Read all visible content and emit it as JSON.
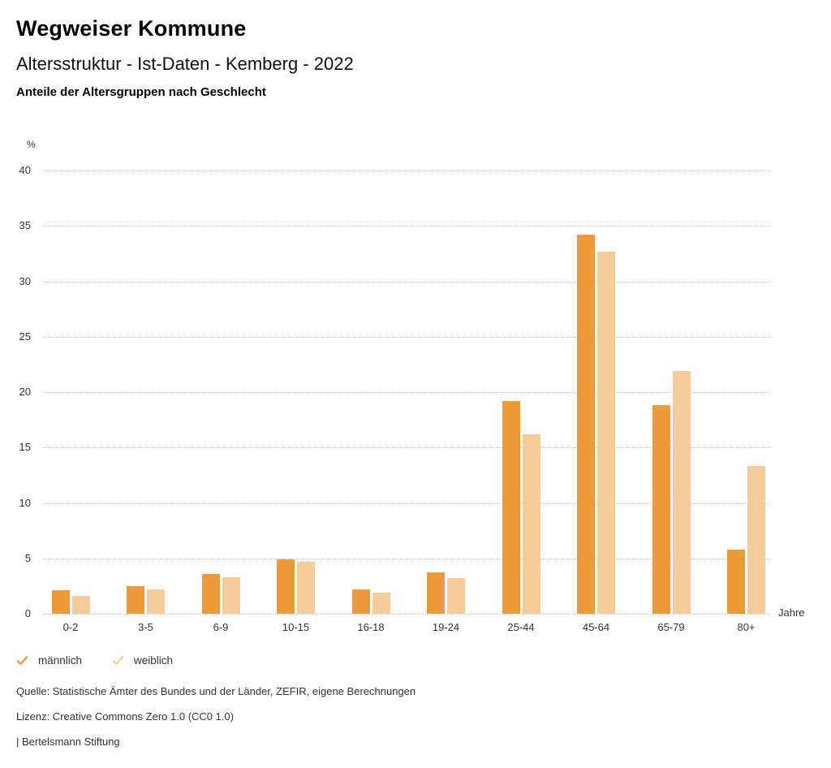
{
  "header": {
    "title": "Wegweiser Kommune",
    "subtitle": "Altersstruktur - Ist-Daten - Kemberg - 2022",
    "caption": "Anteile der Altersgruppen nach Geschlecht"
  },
  "chart_data": {
    "type": "bar",
    "title": "Anteile der Altersgruppen nach Geschlecht",
    "categories": [
      "0-2",
      "3-5",
      "6-9",
      "10-15",
      "16-18",
      "19-24",
      "25-44",
      "45-64",
      "65-79",
      "80+"
    ],
    "series": [
      {
        "name": "männlich",
        "color": "#EC9A3B",
        "values": [
          2.1,
          2.5,
          3.6,
          4.9,
          2.2,
          3.7,
          19.2,
          34.2,
          18.8,
          5.8
        ]
      },
      {
        "name": "weiblich",
        "color": "#F5CD9C",
        "values": [
          1.6,
          2.2,
          3.3,
          4.7,
          1.9,
          3.2,
          16.2,
          32.7,
          21.9,
          13.3
        ]
      }
    ],
    "xlabel": "Jahre",
    "ylabel": "%",
    "ylim": [
      0,
      40
    ],
    "ytick_step": 5,
    "yticks": [
      0,
      5,
      10,
      15,
      20,
      25,
      30,
      35,
      40
    ],
    "grid": "horizontal-dotted",
    "gridline_color": "#c3c3c3",
    "legend_position": "bottom-left",
    "legend_icon": "check-icon"
  },
  "footer": {
    "source": "Quelle: Statistische Ämter des Bundes und der Länder, ZEFIR, eigene Berechnungen",
    "license": "Lizenz: Creative Commons Zero 1.0 (CC0 1.0)",
    "attribution": "| Bertelsmann Stiftung"
  }
}
